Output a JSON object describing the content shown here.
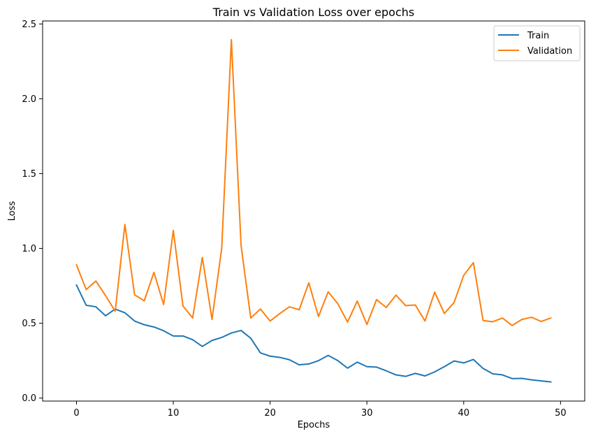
{
  "chart_data": {
    "type": "line",
    "title": "Train vs Validation Loss over epochs",
    "xlabel": "Epochs",
    "ylabel": "Loss",
    "xlim": [
      -3.5,
      52.5
    ],
    "ylim": [
      -0.02,
      2.52
    ],
    "xticks": [
      0,
      10,
      20,
      30,
      40,
      50
    ],
    "yticks": [
      0.0,
      0.5,
      1.0,
      1.5,
      2.0,
      2.5
    ],
    "ytick_labels": [
      "0.0",
      "0.5",
      "1.0",
      "1.5",
      "2.0",
      "2.5"
    ],
    "xtick_labels": [
      "0",
      "10",
      "20",
      "30",
      "40",
      "50"
    ],
    "grid": false,
    "legend_position": "top-right",
    "x": [
      0,
      1,
      2,
      3,
      4,
      5,
      6,
      7,
      8,
      9,
      10,
      11,
      12,
      13,
      14,
      15,
      16,
      17,
      18,
      19,
      20,
      21,
      22,
      23,
      24,
      25,
      26,
      27,
      28,
      29,
      30,
      31,
      32,
      33,
      34,
      35,
      36,
      37,
      38,
      39,
      40,
      41,
      42,
      43,
      44,
      45,
      46,
      47,
      48,
      49
    ],
    "series": [
      {
        "name": "Train",
        "color": "#1f77b4",
        "values": [
          0.755,
          0.62,
          0.61,
          0.55,
          0.595,
          0.57,
          0.515,
          0.49,
          0.475,
          0.45,
          0.415,
          0.415,
          0.39,
          0.345,
          0.385,
          0.405,
          0.435,
          0.452,
          0.4,
          0.302,
          0.28,
          0.272,
          0.256,
          0.222,
          0.228,
          0.25,
          0.285,
          0.25,
          0.2,
          0.24,
          0.21,
          0.207,
          0.182,
          0.155,
          0.145,
          0.165,
          0.148,
          0.175,
          0.21,
          0.248,
          0.235,
          0.258,
          0.198,
          0.162,
          0.155,
          0.13,
          0.132,
          0.122,
          0.115,
          0.108
        ]
      },
      {
        "name": "Validation",
        "color": "#ff7f0e",
        "values": [
          0.89,
          0.725,
          0.782,
          0.685,
          0.58,
          1.16,
          0.69,
          0.65,
          0.84,
          0.625,
          1.12,
          0.615,
          0.535,
          0.94,
          0.525,
          1.0,
          2.395,
          1.02,
          0.535,
          0.595,
          0.515,
          0.565,
          0.61,
          0.59,
          0.77,
          0.545,
          0.71,
          0.63,
          0.508,
          0.648,
          0.492,
          0.658,
          0.605,
          0.688,
          0.618,
          0.622,
          0.515,
          0.708,
          0.565,
          0.638,
          0.82,
          0.905,
          0.518,
          0.51,
          0.535,
          0.485,
          0.525,
          0.54,
          0.512,
          0.535
        ]
      }
    ]
  }
}
